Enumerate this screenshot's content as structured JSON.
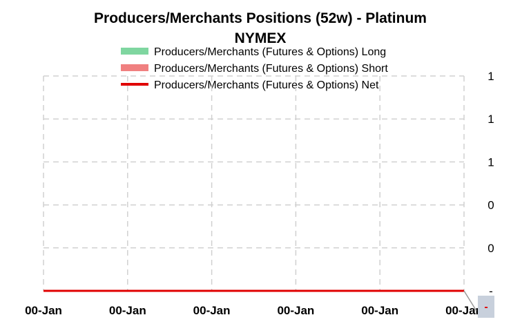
{
  "chart_data": {
    "type": "line",
    "title_line1": "Producers/Merchants  Positions  (52w) - Platinum",
    "title_line2": "NYMEX",
    "legend": [
      {
        "label": "Producers/Merchants (Futures & Options)   Long",
        "color": "#7fd6a0",
        "kind": "band"
      },
      {
        "label": "Producers/Merchants (Futures & Options)   Short",
        "color": "#f08080",
        "kind": "band"
      },
      {
        "label": "Producers/Merchants (Futures & Options)   Net",
        "color": "#e00000",
        "kind": "line"
      }
    ],
    "x_tick_labels": [
      "00-Jan",
      "00-Jan",
      "00-Jan",
      "00-Jan",
      "00-Jan",
      "00-Jan"
    ],
    "y_tick_labels": [
      "1",
      "1",
      "1",
      "0",
      "0",
      "-"
    ],
    "series": [
      {
        "name": "Producers/Merchants (Futures & Options)   Net",
        "color": "#e00000",
        "values": [
          0,
          0,
          0,
          0,
          0,
          0
        ]
      }
    ],
    "ylim": [
      0,
      5
    ],
    "grid": true,
    "grid_style": "dashed",
    "legend_position": "top-center",
    "end_marker_label": "-"
  }
}
